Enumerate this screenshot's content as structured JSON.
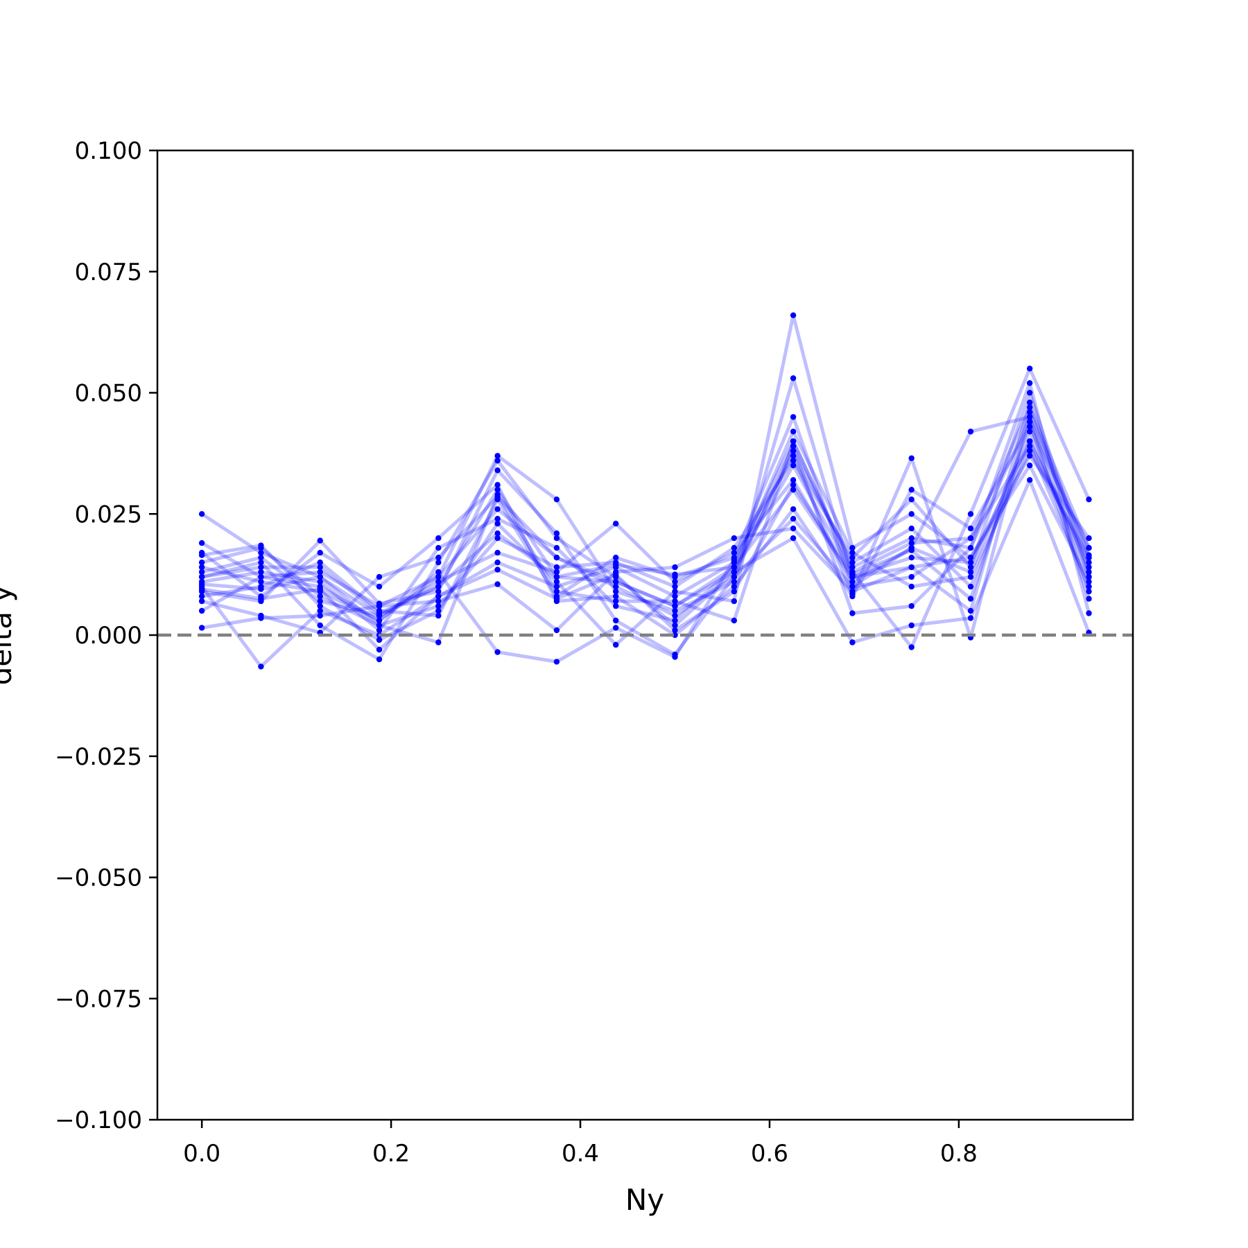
{
  "chart_data": {
    "type": "line",
    "xlabel": "Ny",
    "ylabel": "delta y",
    "xlim": [
      -0.047,
      0.984
    ],
    "ylim": [
      -0.1,
      0.1
    ],
    "x_ticks": [
      {
        "value": 0.0,
        "label": "0.0"
      },
      {
        "value": 0.2,
        "label": "0.2"
      },
      {
        "value": 0.4,
        "label": "0.4"
      },
      {
        "value": 0.6,
        "label": "0.6"
      },
      {
        "value": 0.8,
        "label": "0.8"
      }
    ],
    "y_ticks": [
      {
        "value": 0.1,
        "label": "0.100"
      },
      {
        "value": 0.075,
        "label": "0.075"
      },
      {
        "value": 0.05,
        "label": "0.050"
      },
      {
        "value": 0.025,
        "label": "0.025"
      },
      {
        "value": 0.0,
        "label": "0.000"
      },
      {
        "value": -0.025,
        "label": "−0.025"
      },
      {
        "value": -0.05,
        "label": "−0.050"
      },
      {
        "value": -0.075,
        "label": "−0.075"
      },
      {
        "value": -0.1,
        "label": "−0.100"
      }
    ],
    "reference_line": {
      "y": 0.0,
      "style": "dashed",
      "color": "#808080"
    },
    "series_color": "#0000ff",
    "line_opacity": 0.25,
    "grid": false,
    "x": [
      0.0,
      0.0625,
      0.125,
      0.1875,
      0.25,
      0.3125,
      0.375,
      0.4375,
      0.5,
      0.5625,
      0.625,
      0.6875,
      0.75,
      0.8125,
      0.875,
      0.9375
    ],
    "series": [
      {
        "values": [
          0.025,
          0.017,
          0.012,
          0.004,
          0.01,
          0.03,
          0.012,
          0.011,
          0.006,
          0.014,
          0.03,
          0.012,
          0.016,
          0.015,
          0.04,
          0.015
        ]
      },
      {
        "values": [
          0.019,
          0.012,
          0.01,
          0.003,
          0.012,
          0.026,
          0.016,
          0.01,
          0.004,
          0.012,
          0.024,
          0.01,
          0.018,
          0.013,
          0.042,
          0.012
        ]
      },
      {
        "values": [
          0.01,
          -0.0065,
          0.005,
          0.0,
          0.008,
          0.015,
          0.01,
          0.014,
          0.008,
          0.015,
          0.04,
          0.014,
          0.02,
          0.018,
          0.045,
          0.016
        ]
      },
      {
        "values": [
          0.012,
          0.015,
          0.002,
          -0.005,
          0.015,
          0.036,
          0.02,
          0.012,
          0.002,
          0.013,
          0.038,
          0.015,
          0.022,
          0.01,
          0.04,
          0.014
        ]
      },
      {
        "values": [
          0.008,
          0.01,
          0.015,
          0.005,
          0.004,
          0.028,
          0.008,
          0.016,
          0.012,
          0.016,
          0.045,
          0.01,
          0.012,
          0.02,
          0.047,
          0.018
        ]
      },
      {
        "values": [
          0.015,
          0.018,
          0.008,
          0.002,
          0.006,
          0.02,
          0.014,
          0.015,
          0.01,
          0.018,
          0.036,
          0.016,
          0.028,
          0.014,
          0.05,
          0.013
        ]
      },
      {
        "values": [
          0.0015,
          0.0035,
          0.004,
          0.006,
          0.012,
          0.037,
          0.028,
          0.009,
          0.005,
          0.011,
          0.053,
          0.012,
          0.014,
          0.016,
          0.035,
          0.011
        ]
      },
      {
        "values": [
          0.017,
          0.008,
          0.017,
          0.01,
          0.02,
          0.031,
          0.007,
          0.008,
          0.0,
          0.01,
          0.026,
          0.008,
          0.03,
          0.022,
          0.043,
          0.018
        ]
      },
      {
        "values": [
          0.011,
          0.013,
          0.011,
          0.001,
          0.018,
          0.024,
          0.018,
          0.006,
          0.003,
          0.014,
          0.042,
          0.017,
          0.01,
          0.012,
          0.038,
          0.016
        ]
      },
      {
        "values": [
          0.013,
          0.016,
          0.007,
          0.004,
          0.011,
          0.017,
          0.013,
          0.023,
          0.011,
          0.017,
          0.032,
          0.011,
          0.018,
          0.042,
          0.045,
          0.009
        ]
      },
      {
        "values": [
          0.005,
          0.012,
          0.013,
          0.006,
          0.007,
          0.0105,
          0.001,
          0.013,
          0.014,
          0.02,
          0.022,
          0.009,
          0.014,
          0.005,
          0.048,
          0.012
        ]
      },
      {
        "values": [
          0.009,
          0.007,
          0.0195,
          0.0065,
          0.009,
          0.034,
          0.021,
          0.003,
          -0.004,
          0.012,
          0.039,
          0.0045,
          0.006,
          0.018,
          0.052,
          0.0045
        ]
      },
      {
        "values": [
          0.0165,
          0.0185,
          0.006,
          -0.001,
          0.005,
          0.023,
          0.011,
          -0.002,
          0.009,
          0.007,
          0.066,
          0.018,
          0.025,
          0.016,
          0.037,
          0.02
        ]
      },
      {
        "values": [
          0.007,
          0.004,
          0.0005,
          0.012,
          0.016,
          0.0285,
          0.016,
          0.011,
          0.006,
          0.013,
          0.02,
          -0.0015,
          0.002,
          0.0035,
          0.032,
          0.0005
        ]
      },
      {
        "values": [
          0.0105,
          0.0095,
          0.012,
          0.002,
          -0.0015,
          0.029,
          0.009,
          0.007,
          0.007,
          0.003,
          0.04,
          0.013,
          -0.0025,
          0.025,
          0.055,
          0.028
        ]
      },
      {
        "values": [
          0.014,
          0.011,
          0.009,
          0.003,
          0.013,
          -0.0035,
          -0.0055,
          0.0015,
          -0.0045,
          0.0155,
          0.037,
          0.0085,
          0.0365,
          -0.0005,
          0.046,
          0.0165
        ]
      },
      {
        "values": [
          0.012,
          0.014,
          0.014,
          0.0045,
          0.01,
          0.021,
          0.012,
          0.0145,
          0.0125,
          0.014,
          0.035,
          0.013,
          0.019,
          0.02,
          0.039,
          0.01
        ]
      },
      {
        "values": [
          0.0095,
          0.0075,
          0.0095,
          -0.003,
          0.008,
          0.0135,
          0.0075,
          0.0125,
          0.001,
          0.009,
          0.031,
          0.0125,
          0.0175,
          0.0075,
          0.044,
          0.0075
        ]
      }
    ]
  }
}
